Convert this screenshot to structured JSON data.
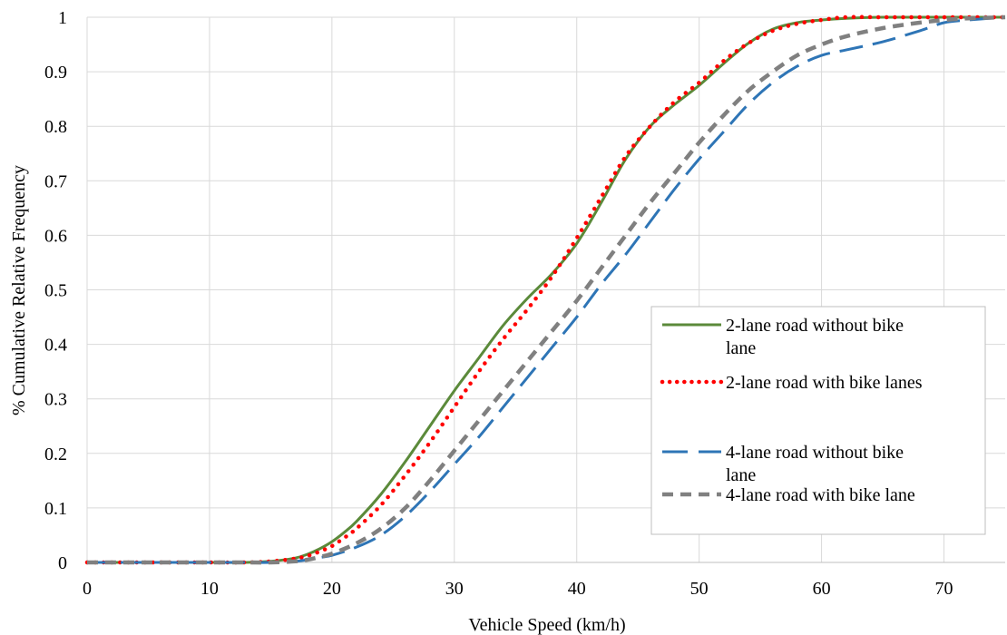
{
  "chart_data": {
    "type": "line",
    "title": "",
    "xlabel": "Vehicle Speed (km/h)",
    "ylabel": "% Cumulative Relative Frequency",
    "xlim": [
      0,
      75
    ],
    "ylim": [
      0,
      1
    ],
    "xticks": [
      0,
      10,
      20,
      30,
      40,
      50,
      60,
      70
    ],
    "yticks": [
      0,
      0.1,
      0.2,
      0.3,
      0.4,
      0.5,
      0.6,
      0.7,
      0.8,
      0.9,
      1
    ],
    "ytick_labels": [
      "0",
      "0.1",
      "0.2",
      "0.3",
      "0.4",
      "0.5",
      "0.6",
      "0.7",
      "0.8",
      "0.9",
      "1"
    ],
    "grid": true,
    "legend_position": "right",
    "series": [
      {
        "name": "2-lane road without bike lane",
        "legend_lines": [
          "2-lane road without bike",
          "lane"
        ],
        "color": "#5b8a3a",
        "style": "solid",
        "x": [
          0,
          5,
          10,
          13,
          15,
          17,
          18,
          19,
          20,
          21,
          22,
          24,
          26,
          28,
          30,
          32,
          34,
          36,
          38,
          40,
          42,
          44,
          46,
          48,
          50,
          52,
          54,
          56,
          58,
          60,
          62,
          65,
          70,
          75
        ],
        "y": [
          0,
          0,
          0,
          0,
          0.002,
          0.008,
          0.015,
          0.025,
          0.038,
          0.055,
          0.075,
          0.125,
          0.185,
          0.25,
          0.315,
          0.375,
          0.435,
          0.485,
          0.53,
          0.585,
          0.66,
          0.74,
          0.8,
          0.84,
          0.875,
          0.915,
          0.952,
          0.978,
          0.99,
          0.995,
          0.998,
          1,
          1,
          1
        ]
      },
      {
        "name": "2-lane road with bike lanes",
        "legend_lines": [
          "2-lane road with bike lanes"
        ],
        "color": "#ff0000",
        "style": "dotted",
        "x": [
          0,
          5,
          10,
          13,
          15,
          17,
          18,
          19,
          20,
          21,
          22,
          24,
          26,
          28,
          30,
          32,
          34,
          36,
          38,
          40,
          42,
          44,
          46,
          48,
          50,
          52,
          54,
          56,
          58,
          60,
          62,
          65,
          70,
          75
        ],
        "y": [
          0,
          0,
          0,
          0,
          0.002,
          0.007,
          0.012,
          0.02,
          0.03,
          0.045,
          0.062,
          0.105,
          0.16,
          0.22,
          0.285,
          0.35,
          0.41,
          0.465,
          0.525,
          0.595,
          0.67,
          0.745,
          0.8,
          0.845,
          0.88,
          0.92,
          0.952,
          0.975,
          0.988,
          0.995,
          1,
          1,
          1,
          1
        ]
      },
      {
        "name": "4-lane road without bike lane",
        "legend_lines": [
          "4-lane road without bike",
          "lane"
        ],
        "color": "#2e75b6",
        "style": "dashed",
        "x": [
          0,
          5,
          10,
          13,
          15,
          17,
          18,
          19,
          20,
          22,
          24,
          26,
          28,
          30,
          32,
          34,
          36,
          38,
          40,
          42,
          44,
          46,
          48,
          50,
          52,
          54,
          56,
          58,
          60,
          62,
          65,
          68,
          70,
          72,
          75
        ],
        "y": [
          0,
          0,
          0,
          0,
          0,
          0.002,
          0.005,
          0.009,
          0.013,
          0.028,
          0.05,
          0.085,
          0.13,
          0.18,
          0.23,
          0.285,
          0.34,
          0.395,
          0.45,
          0.51,
          0.565,
          0.625,
          0.685,
          0.74,
          0.79,
          0.84,
          0.88,
          0.91,
          0.93,
          0.94,
          0.955,
          0.975,
          0.99,
          0.995,
          1
        ]
      },
      {
        "name": "4-lane road with bike lane",
        "legend_lines": [
          "4-lane road with bike lane"
        ],
        "color": "#808080",
        "style": "dashed-short",
        "x": [
          0,
          5,
          10,
          13,
          15,
          17,
          18,
          19,
          20,
          22,
          24,
          26,
          28,
          30,
          32,
          34,
          36,
          38,
          40,
          42,
          44,
          46,
          48,
          50,
          52,
          54,
          56,
          58,
          60,
          62,
          65,
          68,
          70,
          72,
          75
        ],
        "y": [
          0,
          0,
          0,
          0,
          0,
          0.002,
          0.005,
          0.01,
          0.016,
          0.035,
          0.062,
          0.1,
          0.15,
          0.205,
          0.26,
          0.315,
          0.37,
          0.425,
          0.48,
          0.54,
          0.6,
          0.66,
          0.715,
          0.77,
          0.82,
          0.865,
          0.9,
          0.93,
          0.95,
          0.965,
          0.98,
          0.99,
          0.995,
          0.998,
          1
        ]
      }
    ]
  }
}
